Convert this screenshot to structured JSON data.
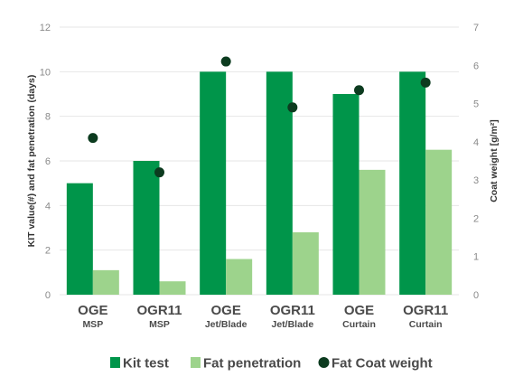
{
  "chart_data": {
    "type": "bar",
    "categories": [
      {
        "label": "OGE",
        "sub": "MSP"
      },
      {
        "label": "OGR11",
        "sub": "MSP"
      },
      {
        "label": "OGE",
        "sub": "Jet/Blade"
      },
      {
        "label": "OGR11",
        "sub": "Jet/Blade"
      },
      {
        "label": "OGE",
        "sub": "Curtain"
      },
      {
        "label": "OGR11",
        "sub": "Curtain"
      }
    ],
    "series": [
      {
        "name": "Kit test",
        "axis": "left",
        "kind": "bar",
        "color": "#00954a",
        "values": [
          5,
          6,
          10,
          10,
          9,
          10
        ]
      },
      {
        "name": "Fat penetration",
        "axis": "left",
        "kind": "bar",
        "color": "#9dd38c",
        "values": [
          1.1,
          0.6,
          1.6,
          2.8,
          5.6,
          6.5
        ]
      },
      {
        "name": "Fat Coat weight",
        "axis": "right",
        "kind": "point",
        "color": "#0c3b1f",
        "values": [
          4.1,
          3.2,
          6.1,
          4.9,
          5.35,
          5.55
        ]
      }
    ],
    "ylabel": "KIT value(#) and fat penetration (days)",
    "y2label": "Coat weight [g/m²]",
    "ylim": [
      0,
      12
    ],
    "y2lim": [
      0,
      7
    ],
    "yticks": [
      0,
      2,
      4,
      6,
      8,
      10,
      12
    ],
    "y2ticks": [
      0,
      1,
      2,
      3,
      4,
      5,
      6,
      7
    ],
    "grid": true,
    "legend_position": "bottom"
  }
}
